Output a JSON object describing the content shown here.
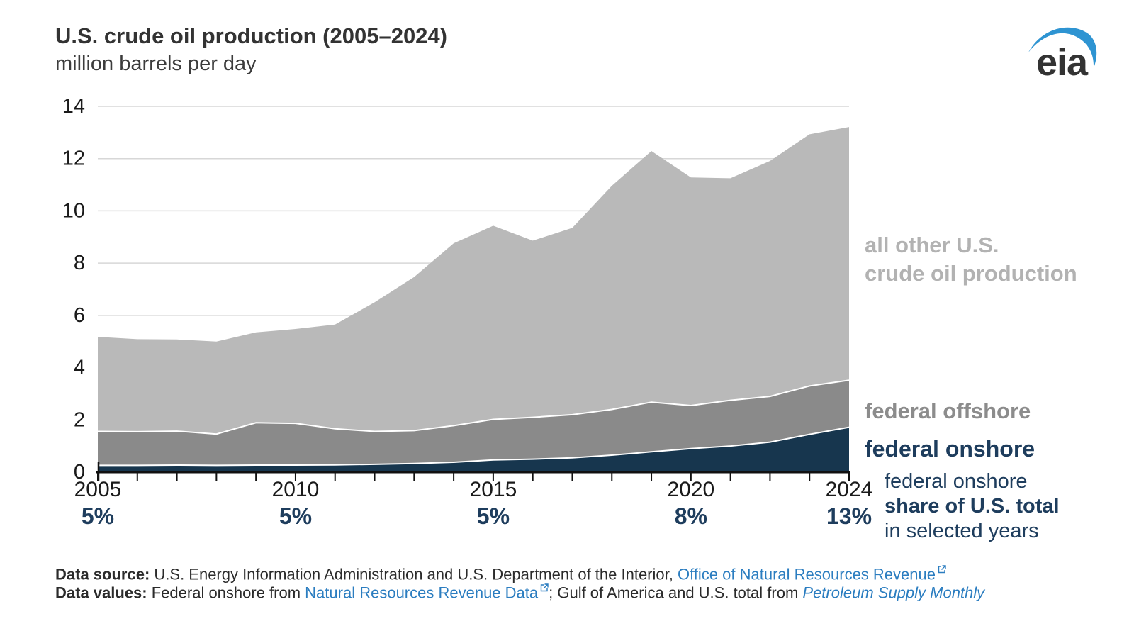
{
  "header": {
    "title": "U.S. crude oil production (2005–2024)",
    "subtitle": "million barrels per day"
  },
  "logo": {
    "text": "eia"
  },
  "colors": {
    "area_federal_onshore": "#17364e",
    "area_federal_offshore": "#8a8a8a",
    "area_all_other": "#b9b9b9",
    "separator_line": "#ffffff",
    "gridline": "#d7d7d7",
    "axis": "#111111",
    "navy_text": "#1e3d5d",
    "gray_label": "#8c8c8c",
    "light_gray_label": "#b2b2b2",
    "link_blue": "#2b7dc0",
    "logo_blue": "#2e94d2",
    "tick_label": "#1a1a1a"
  },
  "chart_data": {
    "type": "area",
    "stacked": true,
    "title": "U.S. crude oil production (2005–2024)",
    "ylabel": "million barrels per day",
    "ylim": [
      0,
      14
    ],
    "yticks": [
      0,
      2,
      4,
      6,
      8,
      10,
      12,
      14
    ],
    "grid": "horizontal",
    "legend_position": "right-annotations",
    "x": [
      2005,
      2006,
      2007,
      2008,
      2009,
      2010,
      2011,
      2012,
      2013,
      2014,
      2015,
      2016,
      2017,
      2018,
      2019,
      2020,
      2021,
      2022,
      2023,
      2024
    ],
    "series": [
      {
        "name": "federal onshore",
        "color": "#17364e",
        "values": [
          0.26,
          0.26,
          0.27,
          0.26,
          0.27,
          0.27,
          0.28,
          0.3,
          0.33,
          0.38,
          0.47,
          0.5,
          0.55,
          0.65,
          0.78,
          0.9,
          1.0,
          1.15,
          1.45,
          1.72
        ]
      },
      {
        "name": "federal offshore",
        "color": "#8a8a8a",
        "values": [
          1.3,
          1.29,
          1.3,
          1.2,
          1.62,
          1.6,
          1.38,
          1.26,
          1.26,
          1.4,
          1.55,
          1.6,
          1.65,
          1.75,
          1.9,
          1.65,
          1.75,
          1.75,
          1.85,
          1.8
        ]
      },
      {
        "name": "all other U.S. crude oil production",
        "color": "#b9b9b9",
        "values": [
          3.62,
          3.54,
          3.51,
          3.54,
          3.46,
          3.61,
          3.99,
          4.94,
          5.88,
          6.98,
          7.41,
          6.76,
          7.15,
          8.56,
          9.61,
          8.73,
          8.5,
          9.01,
          9.63,
          9.69
        ]
      }
    ],
    "totals": [
      5.18,
      5.09,
      5.08,
      5.0,
      5.35,
      5.48,
      5.65,
      6.5,
      7.47,
      8.76,
      9.43,
      8.86,
      9.35,
      10.96,
      12.29,
      11.28,
      11.25,
      11.91,
      12.93,
      13.21
    ],
    "xticks_labeled": [
      2005,
      2010,
      2015,
      2020,
      2024
    ],
    "share_labels": [
      {
        "year": 2005,
        "label": "5%"
      },
      {
        "year": 2010,
        "label": "5%"
      },
      {
        "year": 2015,
        "label": "5%"
      },
      {
        "year": 2020,
        "label": "8%"
      },
      {
        "year": 2024,
        "label": "13%"
      }
    ]
  },
  "right_labels": {
    "all_other_line1": "all other U.S.",
    "all_other_line2": "crude oil production",
    "federal_offshore": "federal offshore",
    "federal_onshore": "federal onshore",
    "share_note_line1": "federal onshore",
    "share_note_line2": "share of U.S. total",
    "share_note_line3": "in selected years"
  },
  "footer": {
    "lines": [
      {
        "segments": [
          {
            "text": "Data source: ",
            "bold": true
          },
          {
            "text": "U.S. Energy Information Administration and U.S. Department of the Interior, "
          },
          {
            "text": "Office of Natural Resources Revenue",
            "link": true,
            "external_icon": true,
            "name": "footer-link-onrr"
          }
        ]
      },
      {
        "segments": [
          {
            "text": "Data values: ",
            "bold": true
          },
          {
            "text": "Federal onshore from "
          },
          {
            "text": "Natural Resources Revenue Data",
            "link": true,
            "external_icon": true,
            "name": "footer-link-nrrd"
          },
          {
            "text": "; Gulf of America and U.S. total from "
          },
          {
            "text": "Petroleum Supply Monthly",
            "link": true,
            "italic": true,
            "name": "footer-link-psm"
          }
        ]
      }
    ]
  }
}
